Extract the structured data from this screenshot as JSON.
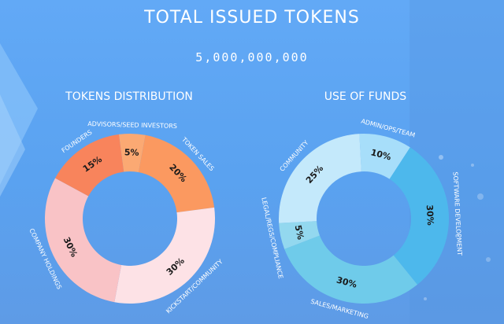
{
  "page": {
    "title": "TOTAL ISSUED TOKENS",
    "total_tokens": "5,000,000,000"
  },
  "chart_data": [
    {
      "type": "pie",
      "title": "TOKENS DISTRIBUTION",
      "slices": [
        {
          "label": "ADVISORS/SEED INVESTORS",
          "value": 5,
          "value_label": "5%",
          "color": "#fba973"
        },
        {
          "label": "TOKEN SALES",
          "value": 20,
          "value_label": "20%",
          "color": "#fb9960"
        },
        {
          "label": "KICKSTART/COMMUNITY",
          "value": 30,
          "value_label": "30%",
          "color": "#fde2e6"
        },
        {
          "label": "COMPANY HOLDINGS",
          "value": 30,
          "value_label": "30%",
          "color": "#f9c3c6"
        },
        {
          "label": "FOUNDERS",
          "value": 15,
          "value_label": "15%",
          "color": "#f8845c"
        }
      ]
    },
    {
      "type": "pie",
      "title": "USE OF FUNDS",
      "slices": [
        {
          "label": "ADMIN/OPS/TEAM",
          "value": 10,
          "value_label": "10%",
          "color": "#a7defa"
        },
        {
          "label": "SOFTWARE DEVELOPMENT",
          "value": 30,
          "value_label": "30%",
          "color": "#4db8ec"
        },
        {
          "label": "SALES/MARKETING",
          "value": 30,
          "value_label": "30%",
          "color": "#6fcbea"
        },
        {
          "label": "LEGAL/REGS/COMPLIANCE",
          "value": 5,
          "value_label": "5%",
          "color": "#93d8ef"
        },
        {
          "label": "COMMUNITY",
          "value": 25,
          "value_label": "25%",
          "color": "#c4e9fb"
        }
      ]
    }
  ]
}
